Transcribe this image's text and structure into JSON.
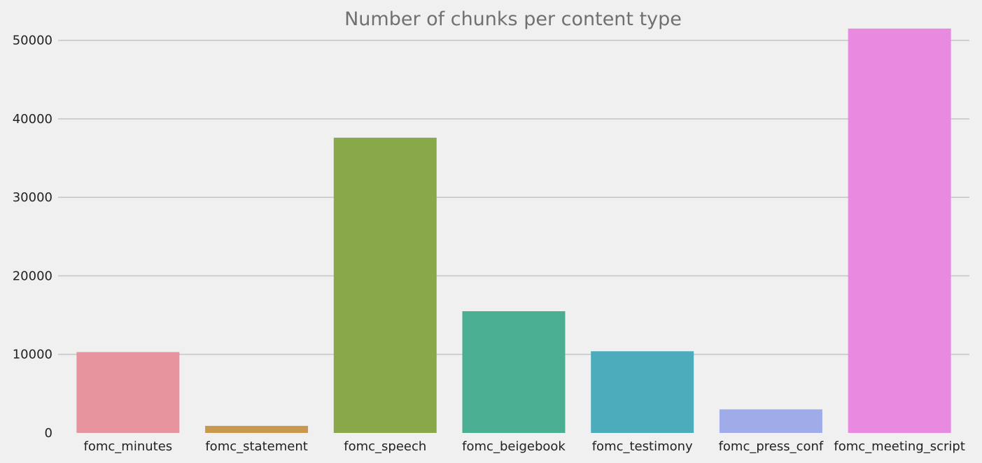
{
  "chart_data": {
    "type": "bar",
    "title": "Number of chunks per content type",
    "xlabel": "",
    "ylabel": "",
    "categories": [
      "fomc_minutes",
      "fomc_statement",
      "fomc_speech",
      "fomc_beigebook",
      "fomc_testimony",
      "fomc_press_conf",
      "fomc_meeting_script"
    ],
    "values": [
      10300,
      900,
      37600,
      15500,
      10400,
      3000,
      51500
    ],
    "colors": [
      "#e8949f",
      "#c8984c",
      "#89a84a",
      "#4aae92",
      "#4dacbc",
      "#a0abea",
      "#e88ae0"
    ],
    "ylim": [
      0,
      53000
    ],
    "yticks": [
      0,
      10000,
      20000,
      30000,
      40000,
      50000
    ],
    "ytick_labels": [
      "0",
      "10000",
      "20000",
      "30000",
      "40000",
      "50000"
    ],
    "grid": "horizontal",
    "legend": "none"
  }
}
